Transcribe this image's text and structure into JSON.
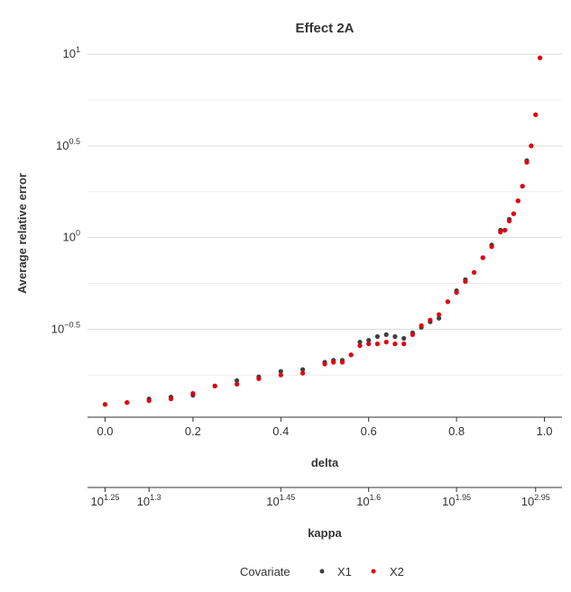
{
  "chart_data": {
    "type": "scatter",
    "title": "Effect 2A",
    "ylabel": "Average relative error",
    "xlabel": "delta",
    "x2label": "kappa",
    "y_scale": "log10",
    "y_ticks": [
      {
        "value": -0.5,
        "base": "10",
        "exp": "−0.5"
      },
      {
        "value": 0,
        "base": "10",
        "exp": "0"
      },
      {
        "value": 0.5,
        "base": "10",
        "exp": "0.5"
      },
      {
        "value": 1,
        "base": "10",
        "exp": "1"
      }
    ],
    "ylim_log10": [
      -0.98,
      1.05
    ],
    "x_ticks": [
      "0.0",
      "0.2",
      "0.4",
      "0.6",
      "0.8",
      "1.0"
    ],
    "x_tick_values": [
      0,
      0.2,
      0.4,
      0.6,
      0.8,
      1.0
    ],
    "xlim": [
      -0.04,
      1.04
    ],
    "kappa_ticks": [
      {
        "delta": 0.0,
        "base": "10",
        "exp": "1.25"
      },
      {
        "delta": 0.1,
        "base": "10",
        "exp": "1.3"
      },
      {
        "delta": 0.4,
        "base": "10",
        "exp": "1.45"
      },
      {
        "delta": 0.6,
        "base": "10",
        "exp": "1.6"
      },
      {
        "delta": 0.8,
        "base": "10",
        "exp": "1.95"
      },
      {
        "delta": 0.98,
        "base": "10",
        "exp": "2.95"
      }
    ],
    "grid": true,
    "legend_position": "bottom",
    "legend_title": "Covariate",
    "series": [
      {
        "name": "X1",
        "color": "#404040",
        "points": [
          [
            0.0,
            -0.91
          ],
          [
            0.05,
            -0.9
          ],
          [
            0.1,
            -0.88
          ],
          [
            0.15,
            -0.87
          ],
          [
            0.2,
            -0.86
          ],
          [
            0.25,
            -0.81
          ],
          [
            0.3,
            -0.78
          ],
          [
            0.35,
            -0.76
          ],
          [
            0.4,
            -0.73
          ],
          [
            0.45,
            -0.72
          ],
          [
            0.5,
            -0.68
          ],
          [
            0.52,
            -0.67
          ],
          [
            0.54,
            -0.67
          ],
          [
            0.56,
            -0.64
          ],
          [
            0.58,
            -0.57
          ],
          [
            0.6,
            -0.56
          ],
          [
            0.62,
            -0.54
          ],
          [
            0.64,
            -0.53
          ],
          [
            0.66,
            -0.54
          ],
          [
            0.68,
            -0.55
          ],
          [
            0.7,
            -0.52
          ],
          [
            0.72,
            -0.49
          ],
          [
            0.74,
            -0.46
          ],
          [
            0.76,
            -0.44
          ],
          [
            0.78,
            -0.35
          ],
          [
            0.8,
            -0.29
          ],
          [
            0.82,
            -0.23
          ],
          [
            0.84,
            -0.19
          ],
          [
            0.86,
            -0.11
          ],
          [
            0.88,
            -0.04
          ],
          [
            0.9,
            0.04
          ],
          [
            0.91,
            0.04
          ],
          [
            0.92,
            0.1
          ],
          [
            0.93,
            0.13
          ],
          [
            0.94,
            0.2
          ],
          [
            0.95,
            0.28
          ],
          [
            0.96,
            0.42
          ],
          [
            0.97,
            0.5
          ],
          [
            0.98,
            0.67
          ],
          [
            0.99,
            0.98
          ]
        ]
      },
      {
        "name": "X2",
        "color": "#e3000f",
        "points": [
          [
            0.0,
            -0.91
          ],
          [
            0.05,
            -0.9
          ],
          [
            0.1,
            -0.89
          ],
          [
            0.15,
            -0.88
          ],
          [
            0.2,
            -0.85
          ],
          [
            0.25,
            -0.81
          ],
          [
            0.3,
            -0.8
          ],
          [
            0.35,
            -0.77
          ],
          [
            0.4,
            -0.75
          ],
          [
            0.45,
            -0.74
          ],
          [
            0.5,
            -0.69
          ],
          [
            0.52,
            -0.68
          ],
          [
            0.54,
            -0.68
          ],
          [
            0.56,
            -0.64
          ],
          [
            0.58,
            -0.59
          ],
          [
            0.6,
            -0.58
          ],
          [
            0.62,
            -0.58
          ],
          [
            0.64,
            -0.57
          ],
          [
            0.66,
            -0.58
          ],
          [
            0.68,
            -0.58
          ],
          [
            0.7,
            -0.53
          ],
          [
            0.72,
            -0.48
          ],
          [
            0.74,
            -0.45
          ],
          [
            0.76,
            -0.42
          ],
          [
            0.78,
            -0.35
          ],
          [
            0.8,
            -0.3
          ],
          [
            0.82,
            -0.24
          ],
          [
            0.84,
            -0.19
          ],
          [
            0.86,
            -0.11
          ],
          [
            0.88,
            -0.05
          ],
          [
            0.9,
            0.03
          ],
          [
            0.91,
            0.04
          ],
          [
            0.92,
            0.09
          ],
          [
            0.93,
            0.13
          ],
          [
            0.94,
            0.2
          ],
          [
            0.95,
            0.28
          ],
          [
            0.96,
            0.41
          ],
          [
            0.97,
            0.5
          ],
          [
            0.98,
            0.67
          ],
          [
            0.99,
            0.98
          ]
        ]
      }
    ]
  }
}
